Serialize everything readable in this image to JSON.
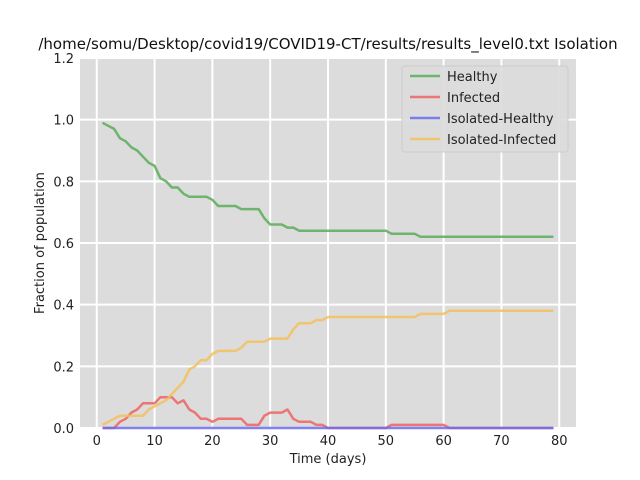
{
  "chart_data": {
    "type": "line",
    "title": "/home/somu/Desktop/covid19/COVID19-CT/results/results_level0.txt Isolation",
    "xlabel": "Time (days)",
    "ylabel": "Fraction of population",
    "xlim": [
      -2.9,
      82.9
    ],
    "ylim": [
      0,
      1.2
    ],
    "xticks": [
      0,
      10,
      20,
      30,
      40,
      50,
      60,
      70,
      80
    ],
    "xtick_labels": [
      "0",
      "10",
      "20",
      "30",
      "40",
      "50",
      "60",
      "70",
      "80"
    ],
    "yticks": [
      0,
      0.2,
      0.4,
      0.6,
      0.8,
      1.0,
      1.2
    ],
    "ytick_labels": [
      "0.0",
      "0.2",
      "0.4",
      "0.6",
      "0.8",
      "1.0",
      "1.2"
    ],
    "grid": true,
    "legend_position": "top-right",
    "background": "#dcdcdc",
    "series": [
      {
        "name": "Healthy",
        "color": "#5aab5a",
        "x": [
          1,
          2,
          3,
          4,
          5,
          6,
          7,
          8,
          9,
          10,
          11,
          12,
          13,
          14,
          15,
          16,
          17,
          18,
          19,
          20,
          21,
          22,
          23,
          24,
          25,
          26,
          27,
          28,
          29,
          30,
          31,
          32,
          33,
          34,
          35,
          36,
          37,
          38,
          39,
          40,
          41,
          42,
          43,
          44,
          45,
          46,
          47,
          48,
          49,
          50,
          51,
          52,
          53,
          54,
          55,
          56,
          57,
          58,
          59,
          60,
          61,
          62,
          63,
          64,
          65,
          66,
          67,
          68,
          69,
          70,
          71,
          72,
          73,
          74,
          75,
          76,
          77,
          78,
          79
        ],
        "y": [
          0.99,
          0.98,
          0.97,
          0.94,
          0.93,
          0.91,
          0.9,
          0.88,
          0.86,
          0.85,
          0.81,
          0.8,
          0.78,
          0.78,
          0.76,
          0.75,
          0.75,
          0.75,
          0.75,
          0.74,
          0.72,
          0.72,
          0.72,
          0.72,
          0.71,
          0.71,
          0.71,
          0.71,
          0.68,
          0.66,
          0.66,
          0.66,
          0.65,
          0.65,
          0.64,
          0.64,
          0.64,
          0.64,
          0.64,
          0.64,
          0.64,
          0.64,
          0.64,
          0.64,
          0.64,
          0.64,
          0.64,
          0.64,
          0.64,
          0.64,
          0.63,
          0.63,
          0.63,
          0.63,
          0.63,
          0.62,
          0.62,
          0.62,
          0.62,
          0.62,
          0.62,
          0.62,
          0.62,
          0.62,
          0.62,
          0.62,
          0.62,
          0.62,
          0.62,
          0.62,
          0.62,
          0.62,
          0.62,
          0.62,
          0.62,
          0.62,
          0.62,
          0.62,
          0.62
        ]
      },
      {
        "name": "Infected",
        "color": "#ee6363",
        "x": [
          1,
          2,
          3,
          4,
          5,
          6,
          7,
          8,
          9,
          10,
          11,
          12,
          13,
          14,
          15,
          16,
          17,
          18,
          19,
          20,
          21,
          22,
          23,
          24,
          25,
          26,
          27,
          28,
          29,
          30,
          31,
          32,
          33,
          34,
          35,
          36,
          37,
          38,
          39,
          40,
          41,
          42,
          43,
          44,
          45,
          46,
          47,
          48,
          49,
          50,
          51,
          52,
          53,
          54,
          55,
          56,
          57,
          58,
          59,
          60,
          61,
          62,
          63,
          64,
          65,
          66,
          67,
          68,
          69,
          70,
          71,
          72,
          73,
          74,
          75,
          76,
          77,
          78,
          79
        ],
        "y": [
          0.0,
          0.0,
          0.0,
          0.02,
          0.03,
          0.05,
          0.06,
          0.08,
          0.08,
          0.08,
          0.1,
          0.1,
          0.1,
          0.08,
          0.09,
          0.06,
          0.05,
          0.03,
          0.03,
          0.02,
          0.03,
          0.03,
          0.03,
          0.03,
          0.03,
          0.01,
          0.01,
          0.01,
          0.04,
          0.05,
          0.05,
          0.05,
          0.06,
          0.03,
          0.02,
          0.02,
          0.02,
          0.01,
          0.01,
          0.0,
          0.0,
          0.0,
          0.0,
          0.0,
          0.0,
          0.0,
          0.0,
          0.0,
          0.0,
          0.0,
          0.01,
          0.01,
          0.01,
          0.01,
          0.01,
          0.01,
          0.01,
          0.01,
          0.01,
          0.01,
          0.0,
          0.0,
          0.0,
          0.0,
          0.0,
          0.0,
          0.0,
          0.0,
          0.0,
          0.0,
          0.0,
          0.0,
          0.0,
          0.0,
          0.0,
          0.0,
          0.0,
          0.0,
          0.0
        ]
      },
      {
        "name": "Isolated-Healthy",
        "color": "#6b6bf0",
        "x": [
          1,
          79
        ],
        "y": [
          0.0,
          0.0
        ]
      },
      {
        "name": "Isolated-Infected",
        "color": "#f5bf5c",
        "x": [
          1,
          2,
          3,
          4,
          5,
          6,
          7,
          8,
          9,
          10,
          11,
          12,
          13,
          14,
          15,
          16,
          17,
          18,
          19,
          20,
          21,
          22,
          23,
          24,
          25,
          26,
          27,
          28,
          29,
          30,
          31,
          32,
          33,
          34,
          35,
          36,
          37,
          38,
          39,
          40,
          41,
          42,
          43,
          44,
          45,
          46,
          47,
          48,
          49,
          50,
          51,
          52,
          53,
          54,
          55,
          56,
          57,
          58,
          59,
          60,
          61,
          62,
          63,
          64,
          65,
          66,
          67,
          68,
          69,
          70,
          71,
          72,
          73,
          74,
          75,
          76,
          77,
          78,
          79
        ],
        "y": [
          0.01,
          0.02,
          0.03,
          0.04,
          0.04,
          0.04,
          0.04,
          0.04,
          0.06,
          0.07,
          0.08,
          0.09,
          0.11,
          0.13,
          0.15,
          0.19,
          0.2,
          0.22,
          0.22,
          0.24,
          0.25,
          0.25,
          0.25,
          0.25,
          0.26,
          0.28,
          0.28,
          0.28,
          0.28,
          0.29,
          0.29,
          0.29,
          0.29,
          0.32,
          0.34,
          0.34,
          0.34,
          0.35,
          0.35,
          0.36,
          0.36,
          0.36,
          0.36,
          0.36,
          0.36,
          0.36,
          0.36,
          0.36,
          0.36,
          0.36,
          0.36,
          0.36,
          0.36,
          0.36,
          0.36,
          0.37,
          0.37,
          0.37,
          0.37,
          0.37,
          0.38,
          0.38,
          0.38,
          0.38,
          0.38,
          0.38,
          0.38,
          0.38,
          0.38,
          0.38,
          0.38,
          0.38,
          0.38,
          0.38,
          0.38,
          0.38,
          0.38,
          0.38,
          0.38
        ]
      }
    ]
  }
}
